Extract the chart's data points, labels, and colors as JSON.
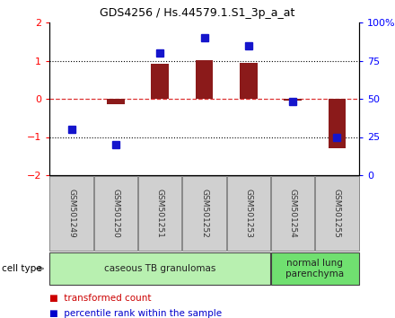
{
  "title": "GDS4256 / Hs.44579.1.S1_3p_a_at",
  "samples": [
    "GSM501249",
    "GSM501250",
    "GSM501251",
    "GSM501252",
    "GSM501253",
    "GSM501254",
    "GSM501255"
  ],
  "transformed_count": [
    0.0,
    -0.15,
    0.92,
    1.02,
    0.95,
    -0.05,
    -1.3
  ],
  "percentile_rank": [
    30,
    20,
    80,
    90,
    85,
    48,
    25
  ],
  "bar_color": "#8B1A1A",
  "dot_color": "#1515CC",
  "ylim_left": [
    -2,
    2
  ],
  "ylim_right": [
    0,
    100
  ],
  "yticks_left": [
    -2,
    -1,
    0,
    1,
    2
  ],
  "yticks_right": [
    0,
    25,
    50,
    75,
    100
  ],
  "ytick_right_labels": [
    "0",
    "25",
    "50",
    "75",
    "100%"
  ],
  "group_ranges": [
    [
      0,
      4
    ],
    [
      5,
      6
    ]
  ],
  "group_labels": [
    "caseous TB granulomas",
    "normal lung\nparenchyma"
  ],
  "group_colors": [
    "#b8f0b0",
    "#70e070"
  ],
  "cell_type_label": "cell type",
  "legend_items": [
    {
      "color": "#CC0000",
      "label": "transformed count"
    },
    {
      "color": "#0000CC",
      "label": "percentile rank within the sample"
    }
  ],
  "zero_line_color": "#DD3333",
  "dotted_line_color": "#000000",
  "bar_width": 0.4,
  "dot_size": 6
}
